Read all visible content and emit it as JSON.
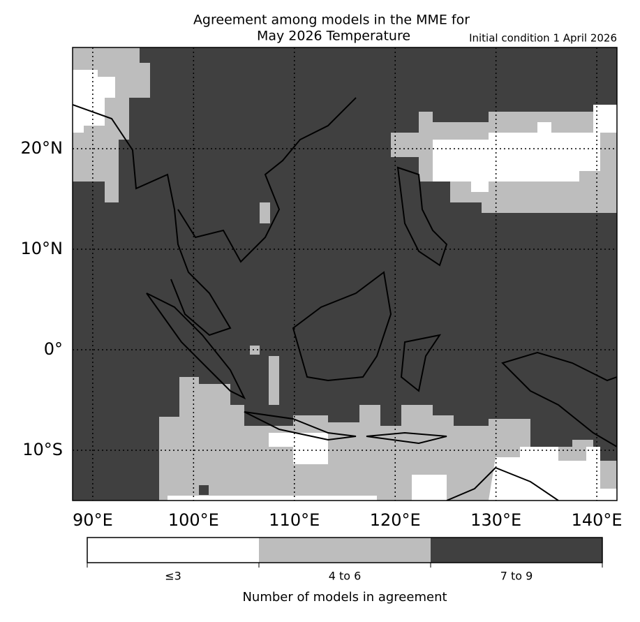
{
  "map": {
    "title": [
      "Agreement among models in the MME for",
      "May 2026  Temperature"
    ],
    "subtitle": "Initial condition 1 April 2026",
    "xlim": [
      88,
      142
    ],
    "ylim": [
      -15,
      30.07
    ],
    "xticks": [
      {
        "value": 90,
        "label": "90°E"
      },
      {
        "value": 100,
        "label": "100°E"
      },
      {
        "value": 110,
        "label": "110°E"
      },
      {
        "value": 120,
        "label": "120°E"
      },
      {
        "value": 130,
        "label": "130°E"
      },
      {
        "value": 140,
        "label": "140°E"
      }
    ],
    "yticks": [
      {
        "value": 20,
        "label": "20°N"
      },
      {
        "value": 10,
        "label": "10°N"
      },
      {
        "value": 0,
        "label": "0°"
      },
      {
        "value": -10,
        "label": "10°S"
      }
    ],
    "grid": true
  },
  "legend": {
    "title": "Number of models in agreement",
    "categories": [
      "≤3",
      "4 to 6",
      "7 to 9"
    ],
    "colors": [
      "#ffffff",
      "#bdbdbd",
      "#404040"
    ]
  }
}
